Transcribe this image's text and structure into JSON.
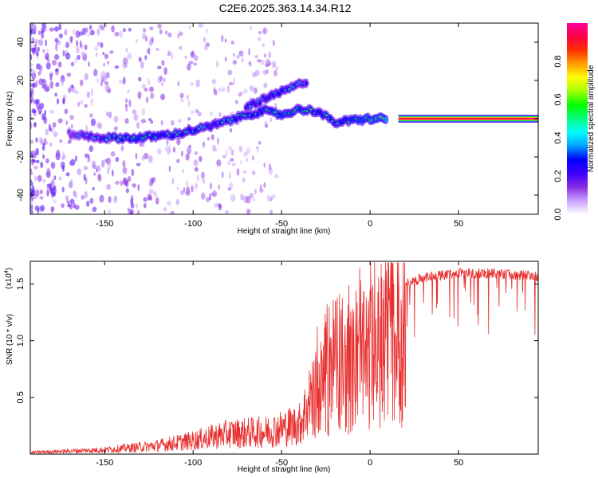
{
  "page": {
    "title": "C2E6.2025.363.14.34.R12"
  },
  "chart_data": [
    {
      "type": "heatmap",
      "title": "C2E6.2025.363.14.34.R12",
      "xlabel": "Height of straight line (km)",
      "ylabel": "Frequency (Hz)",
      "xlim": [
        -192,
        95
      ],
      "ylim": [
        -50,
        50
      ],
      "xticks": [
        -150,
        -100,
        -50,
        0,
        50
      ],
      "yticks": [
        -40,
        -20,
        0,
        20,
        40
      ],
      "colorbar": {
        "label": "Normalized spectral amplitude",
        "range": [
          0,
          1
        ],
        "ticks": [
          "0.0",
          "0.2",
          "0.4",
          "0.6",
          "0.8"
        ],
        "colors": [
          "#ffffff",
          "#c9a0ff",
          "#8a2be2",
          "#3b00ff",
          "#0000ff",
          "#00a0ff",
          "#00ffff",
          "#00ff80",
          "#00ff00",
          "#a0ff00",
          "#ffff00",
          "#ffa000",
          "#ff3000",
          "#ff0040",
          "#ff00a0"
        ]
      },
      "main_trace": [
        {
          "x": -170,
          "y": -8,
          "a": 0.3
        },
        {
          "x": -160,
          "y": -9,
          "a": 0.4
        },
        {
          "x": -150,
          "y": -10,
          "a": 0.45
        },
        {
          "x": -140,
          "y": -10,
          "a": 0.5
        },
        {
          "x": -130,
          "y": -10,
          "a": 0.55
        },
        {
          "x": -120,
          "y": -9,
          "a": 0.5
        },
        {
          "x": -110,
          "y": -8,
          "a": 0.5
        },
        {
          "x": -100,
          "y": -6,
          "a": 0.5
        },
        {
          "x": -90,
          "y": -4,
          "a": 0.45
        },
        {
          "x": -80,
          "y": -1,
          "a": 0.5
        },
        {
          "x": -70,
          "y": 2,
          "a": 0.5
        },
        {
          "x": -60,
          "y": 4,
          "a": 0.5
        },
        {
          "x": -50,
          "y": 2,
          "a": 0.55
        },
        {
          "x": -40,
          "y": 5,
          "a": 0.55
        },
        {
          "x": -30,
          "y": 4,
          "a": 0.5
        },
        {
          "x": -20,
          "y": -2,
          "a": 0.5
        },
        {
          "x": -10,
          "y": -1,
          "a": 0.55
        },
        {
          "x": 0,
          "y": 0,
          "a": 0.6
        },
        {
          "x": 10,
          "y": 0,
          "a": 0.65
        }
      ],
      "secondary_trace": [
        {
          "x": -70,
          "y": 6,
          "a": 0.45
        },
        {
          "x": -60,
          "y": 10,
          "a": 0.45
        },
        {
          "x": -50,
          "y": 14,
          "a": 0.5
        },
        {
          "x": -40,
          "y": 18,
          "a": 0.45
        },
        {
          "x": -35,
          "y": 20,
          "a": 0.4
        }
      ],
      "steady_band": {
        "x_start": 16,
        "x_end": 95,
        "y": 0,
        "a": 0.95
      }
    },
    {
      "type": "line",
      "xlabel": "Height of straight line (km)",
      "ylabel": "SNR (10 * v/v)",
      "y_multiplier": "(x10",
      "y_multiplier_exp": "4",
      "y_multiplier_close": ")",
      "xlim": [
        -192,
        95
      ],
      "ylim": [
        0,
        17000
      ],
      "xticks": [
        -150,
        -100,
        -50,
        0,
        50
      ],
      "yticks": [
        5000,
        10000,
        15000
      ],
      "ytick_labels": [
        "0.5",
        "1.0",
        "1.5"
      ],
      "color": "#e83030",
      "envelope": [
        {
          "x": -192,
          "y": 200
        },
        {
          "x": -150,
          "y": 500
        },
        {
          "x": -120,
          "y": 1000
        },
        {
          "x": -100,
          "y": 1600
        },
        {
          "x": -80,
          "y": 2400
        },
        {
          "x": -60,
          "y": 2600
        },
        {
          "x": -40,
          "y": 3500
        },
        {
          "x": -30,
          "y": 8000
        },
        {
          "x": -20,
          "y": 10500
        },
        {
          "x": -10,
          "y": 11000
        },
        {
          "x": 0,
          "y": 12500
        },
        {
          "x": 10,
          "y": 14000
        },
        {
          "x": 20,
          "y": 15500
        },
        {
          "x": 30,
          "y": 16000
        },
        {
          "x": 50,
          "y": 16400
        },
        {
          "x": 70,
          "y": 16400
        },
        {
          "x": 95,
          "y": 16100
        }
      ]
    }
  ]
}
